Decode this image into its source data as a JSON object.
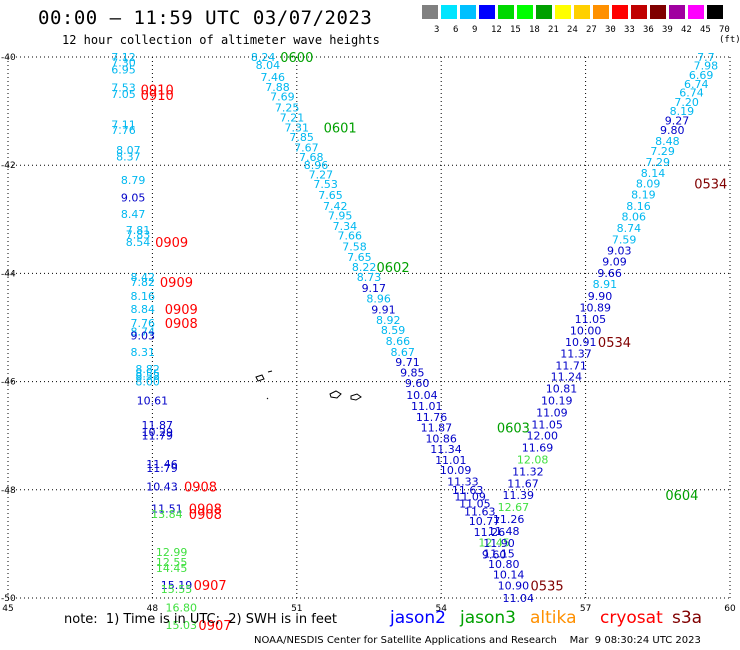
{
  "header": {
    "title": "00:00 – 11:59 UTC 03/07/2023",
    "subtitle": "12 hour collection of altimeter wave heights"
  },
  "color_scale": {
    "labels": [
      "3",
      "6",
      "9",
      "12",
      "15",
      "18",
      "21",
      "24",
      "27",
      "30",
      "33",
      "36",
      "39",
      "42",
      "45",
      "70 (ft)"
    ],
    "colors": [
      "#808080",
      "#00e5ff",
      "#00c0ff",
      "#0000ff",
      "#00d800",
      "#00ff00",
      "#00a000",
      "#ffff00",
      "#ffd000",
      "#ff9000",
      "#ff0000",
      "#c00000",
      "#800000",
      "#a000a0",
      "#ff00ff",
      "#000000"
    ]
  },
  "note": "note:  1) Time is in UTC;  2) SWH is in feet",
  "satellites": [
    {
      "name": "jason2",
      "color": "#0000ff"
    },
    {
      "name": "jason3",
      "color": "#00a000"
    },
    {
      "name": "altika",
      "color": "#ff9000"
    },
    {
      "name": "cryosat",
      "color": "#ff0000"
    },
    {
      "name": "s3a",
      "color": "#800000"
    }
  ],
  "footer": "NOAA/NESDIS Center for Satellite Applications and Research    Mar  9 08:30:24 UTC 2023",
  "chart_data": {
    "type": "scatter",
    "xlim": [
      45,
      60
    ],
    "ylim": [
      -50,
      -40
    ],
    "x_ticks": [
      "45",
      "48",
      "51",
      "54",
      "57",
      "60"
    ],
    "y_ticks": [
      "-40",
      "-42",
      "-44",
      "-46",
      "-48",
      "-50"
    ],
    "grid": true,
    "colors": {
      "lb": "#00b8f0",
      "bl": "#0000c8",
      "gr": "#00a000",
      "lg": "#40e040",
      "rd": "#ff0000",
      "dr": "#800000"
    },
    "wave_labels": [
      {
        "x": 47.4,
        "y": -40.0,
        "t": "7.12",
        "c": "lb"
      },
      {
        "x": 47.4,
        "y": -40.1,
        "t": "7.30",
        "c": "lb"
      },
      {
        "x": 47.4,
        "y": -40.23,
        "t": "6.95",
        "c": "lb"
      },
      {
        "x": 47.4,
        "y": -40.56,
        "t": "7.53",
        "c": "lb"
      },
      {
        "x": 47.4,
        "y": -40.68,
        "t": "7.05",
        "c": "lb"
      },
      {
        "x": 47.4,
        "y": -41.25,
        "t": "7.11",
        "c": "lb"
      },
      {
        "x": 47.4,
        "y": -41.35,
        "t": "7.76",
        "c": "lb"
      },
      {
        "x": 47.5,
        "y": -41.72,
        "t": "8.07",
        "c": "lb"
      },
      {
        "x": 47.5,
        "y": -41.84,
        "t": "8.37",
        "c": "lb"
      },
      {
        "x": 47.6,
        "y": -42.27,
        "t": "8.79",
        "c": "lb"
      },
      {
        "x": 47.6,
        "y": -42.6,
        "t": "9.05",
        "c": "bl"
      },
      {
        "x": 47.6,
        "y": -42.9,
        "t": "8.47",
        "c": "lb"
      },
      {
        "x": 47.7,
        "y": -43.2,
        "t": "7.81",
        "c": "lb"
      },
      {
        "x": 47.7,
        "y": -43.28,
        "t": "7.83",
        "c": "lb"
      },
      {
        "x": 47.7,
        "y": -43.42,
        "t": "8.54",
        "c": "lb"
      },
      {
        "x": 47.8,
        "y": -44.07,
        "t": "8.42",
        "c": "lb"
      },
      {
        "x": 47.8,
        "y": -44.16,
        "t": "7.82",
        "c": "lb"
      },
      {
        "x": 47.8,
        "y": -44.42,
        "t": "8.16",
        "c": "lb"
      },
      {
        "x": 47.8,
        "y": -44.66,
        "t": "8.84",
        "c": "lb"
      },
      {
        "x": 47.8,
        "y": -44.92,
        "t": "7.76",
        "c": "lb"
      },
      {
        "x": 47.8,
        "y": -45.07,
        "t": "8.74",
        "c": "lb"
      },
      {
        "x": 47.8,
        "y": -45.15,
        "t": "9.03",
        "c": "bl"
      },
      {
        "x": 47.8,
        "y": -45.45,
        "t": "8.31",
        "c": "lb"
      },
      {
        "x": 47.9,
        "y": -45.77,
        "t": "8.82",
        "c": "lb"
      },
      {
        "x": 47.9,
        "y": -45.85,
        "t": "8.55",
        "c": "lb"
      },
      {
        "x": 47.9,
        "y": -45.9,
        "t": "8.58",
        "c": "lb"
      },
      {
        "x": 47.9,
        "y": -46.0,
        "t": "8.00",
        "c": "lb"
      },
      {
        "x": 48.0,
        "y": -46.35,
        "t": "10.61",
        "c": "bl"
      },
      {
        "x": 48.1,
        "y": -46.8,
        "t": "11.87",
        "c": "bl"
      },
      {
        "x": 48.1,
        "y": -46.93,
        "t": "10.29",
        "c": "bl"
      },
      {
        "x": 48.1,
        "y": -47.0,
        "t": "11.79",
        "c": "bl"
      },
      {
        "x": 48.2,
        "y": -47.52,
        "t": "11.46",
        "c": "bl"
      },
      {
        "x": 48.2,
        "y": -47.6,
        "t": "11.79",
        "c": "bl"
      },
      {
        "x": 48.2,
        "y": -47.94,
        "t": "10.43",
        "c": "bl"
      },
      {
        "x": 48.3,
        "y": -48.35,
        "t": "11.51",
        "c": "bl"
      },
      {
        "x": 48.3,
        "y": -48.45,
        "t": "13.84",
        "c": "lg"
      },
      {
        "x": 48.4,
        "y": -49.15,
        "t": "12.99",
        "c": "lg"
      },
      {
        "x": 48.4,
        "y": -49.33,
        "t": "12.55",
        "c": "lg"
      },
      {
        "x": 48.4,
        "y": -49.45,
        "t": "14.45",
        "c": "lg"
      },
      {
        "x": 48.5,
        "y": -49.76,
        "t": "15.19",
        "c": "bl"
      },
      {
        "x": 48.5,
        "y": -49.83,
        "t": "15.55",
        "c": "lg"
      },
      {
        "x": 48.6,
        "y": -50.18,
        "t": "16.80",
        "c": "lg"
      },
      {
        "x": 48.6,
        "y": -50.5,
        "t": "15.03",
        "c": "lg"
      },
      {
        "x": 50.3,
        "y": -40.0,
        "t": "8.24",
        "c": "lb"
      },
      {
        "x": 50.4,
        "y": -40.15,
        "t": "8.04",
        "c": "lb"
      },
      {
        "x": 50.5,
        "y": -40.37,
        "t": "7.46",
        "c": "lb"
      },
      {
        "x": 50.6,
        "y": -40.55,
        "t": "7.88",
        "c": "lb"
      },
      {
        "x": 50.7,
        "y": -40.73,
        "t": "7.69",
        "c": "lb"
      },
      {
        "x": 50.8,
        "y": -40.93,
        "t": "7.25",
        "c": "lb"
      },
      {
        "x": 50.9,
        "y": -41.12,
        "t": "7.21",
        "c": "lb"
      },
      {
        "x": 51.0,
        "y": -41.3,
        "t": "7.31",
        "c": "lb"
      },
      {
        "x": 51.1,
        "y": -41.48,
        "t": "7.85",
        "c": "lb"
      },
      {
        "x": 51.2,
        "y": -41.67,
        "t": "7.67",
        "c": "lb"
      },
      {
        "x": 51.3,
        "y": -41.85,
        "t": "7.68",
        "c": "lb"
      },
      {
        "x": 51.4,
        "y": -42.0,
        "t": "8.96",
        "c": "lb"
      },
      {
        "x": 51.5,
        "y": -42.17,
        "t": "7.27",
        "c": "lb"
      },
      {
        "x": 51.6,
        "y": -42.35,
        "t": "7.53",
        "c": "lb"
      },
      {
        "x": 51.7,
        "y": -42.55,
        "t": "7.65",
        "c": "lb"
      },
      {
        "x": 51.8,
        "y": -42.75,
        "t": "7.42",
        "c": "lb"
      },
      {
        "x": 51.9,
        "y": -42.93,
        "t": "7.95",
        "c": "lb"
      },
      {
        "x": 52.0,
        "y": -43.12,
        "t": "7.34",
        "c": "lb"
      },
      {
        "x": 52.1,
        "y": -43.3,
        "t": "7.66",
        "c": "lb"
      },
      {
        "x": 52.2,
        "y": -43.5,
        "t": "7.58",
        "c": "lb"
      },
      {
        "x": 52.3,
        "y": -43.7,
        "t": "7.65",
        "c": "lb"
      },
      {
        "x": 52.4,
        "y": -43.88,
        "t": "8.22",
        "c": "lb"
      },
      {
        "x": 52.5,
        "y": -44.07,
        "t": "8.73",
        "c": "lb"
      },
      {
        "x": 52.6,
        "y": -44.27,
        "t": "9.17",
        "c": "bl"
      },
      {
        "x": 52.7,
        "y": -44.46,
        "t": "8.96",
        "c": "lb"
      },
      {
        "x": 52.8,
        "y": -44.67,
        "t": "9.91",
        "c": "bl"
      },
      {
        "x": 52.9,
        "y": -44.86,
        "t": "8.92",
        "c": "lb"
      },
      {
        "x": 53.0,
        "y": -45.05,
        "t": "8.59",
        "c": "lb"
      },
      {
        "x": 53.1,
        "y": -45.25,
        "t": "8.66",
        "c": "lb"
      },
      {
        "x": 53.2,
        "y": -45.45,
        "t": "8.67",
        "c": "lb"
      },
      {
        "x": 53.3,
        "y": -45.64,
        "t": "9.71",
        "c": "bl"
      },
      {
        "x": 53.4,
        "y": -45.83,
        "t": "9.85",
        "c": "bl"
      },
      {
        "x": 53.5,
        "y": -46.03,
        "t": "9.60",
        "c": "bl"
      },
      {
        "x": 53.6,
        "y": -46.25,
        "t": "10.04",
        "c": "bl"
      },
      {
        "x": 53.7,
        "y": -46.45,
        "t": "11.01",
        "c": "bl"
      },
      {
        "x": 53.8,
        "y": -46.65,
        "t": "11.76",
        "c": "bl"
      },
      {
        "x": 53.9,
        "y": -46.85,
        "t": "11.87",
        "c": "bl"
      },
      {
        "x": 54.0,
        "y": -47.05,
        "t": "10.86",
        "c": "bl"
      },
      {
        "x": 54.1,
        "y": -47.25,
        "t": "11.34",
        "c": "bl"
      },
      {
        "x": 54.2,
        "y": -47.45,
        "t": "11.01",
        "c": "bl"
      },
      {
        "x": 54.3,
        "y": -47.63,
        "t": "10.09",
        "c": "bl"
      },
      {
        "x": 54.45,
        "y": -47.85,
        "t": "11.33",
        "c": "bl"
      },
      {
        "x": 54.55,
        "y": -48.0,
        "t": "11.63",
        "c": "bl"
      },
      {
        "x": 54.6,
        "y": -48.12,
        "t": "11.09",
        "c": "bl"
      },
      {
        "x": 54.7,
        "y": -48.25,
        "t": "11.05",
        "c": "bl"
      },
      {
        "x": 54.8,
        "y": -48.4,
        "t": "11.63",
        "c": "bl"
      },
      {
        "x": 54.9,
        "y": -48.58,
        "t": "10.77",
        "c": "bl"
      },
      {
        "x": 55.0,
        "y": -48.78,
        "t": "11.26",
        "c": "bl"
      },
      {
        "x": 55.1,
        "y": -48.97,
        "t": "12.45",
        "c": "lg"
      },
      {
        "x": 55.2,
        "y": -49.18,
        "t": "11.15",
        "c": "bl"
      },
      {
        "x": 55.3,
        "y": -49.37,
        "t": "10.80",
        "c": "bl"
      },
      {
        "x": 55.4,
        "y": -49.57,
        "t": "10.14",
        "c": "bl"
      },
      {
        "x": 55.5,
        "y": -49.77,
        "t": "10.90",
        "c": "bl"
      },
      {
        "x": 55.6,
        "y": -50.0,
        "t": "11.04",
        "c": "bl"
      },
      {
        "x": 59.5,
        "y": -40.0,
        "t": "7.7",
        "c": "lb"
      },
      {
        "x": 59.5,
        "y": -40.16,
        "t": "7.98",
        "c": "lb"
      },
      {
        "x": 59.4,
        "y": -40.33,
        "t": "6.69",
        "c": "lb"
      },
      {
        "x": 59.3,
        "y": -40.5,
        "t": "6.74",
        "c": "lb"
      },
      {
        "x": 59.2,
        "y": -40.66,
        "t": "6.74",
        "c": "lb"
      },
      {
        "x": 59.1,
        "y": -40.83,
        "t": "7.20",
        "c": "lb"
      },
      {
        "x": 59.0,
        "y": -41.0,
        "t": "8.19",
        "c": "lb"
      },
      {
        "x": 58.9,
        "y": -41.17,
        "t": "9.27",
        "c": "bl"
      },
      {
        "x": 58.8,
        "y": -41.35,
        "t": "9.80",
        "c": "bl"
      },
      {
        "x": 58.7,
        "y": -41.55,
        "t": "8.48",
        "c": "lb"
      },
      {
        "x": 58.6,
        "y": -41.74,
        "t": "7.29",
        "c": "lb"
      },
      {
        "x": 58.5,
        "y": -41.94,
        "t": "7.29",
        "c": "lb"
      },
      {
        "x": 58.4,
        "y": -42.14,
        "t": "8.14",
        "c": "lb"
      },
      {
        "x": 58.3,
        "y": -42.34,
        "t": "8.09",
        "c": "lb"
      },
      {
        "x": 58.2,
        "y": -42.54,
        "t": "8.19",
        "c": "lb"
      },
      {
        "x": 58.1,
        "y": -42.75,
        "t": "8.16",
        "c": "lb"
      },
      {
        "x": 58.0,
        "y": -42.95,
        "t": "8.06",
        "c": "lb"
      },
      {
        "x": 57.9,
        "y": -43.16,
        "t": "8.74",
        "c": "lb"
      },
      {
        "x": 57.8,
        "y": -43.37,
        "t": "7.59",
        "c": "lb"
      },
      {
        "x": 57.7,
        "y": -43.58,
        "t": "9.03",
        "c": "bl"
      },
      {
        "x": 57.6,
        "y": -43.78,
        "t": "9.09",
        "c": "bl"
      },
      {
        "x": 57.5,
        "y": -43.99,
        "t": "9.66",
        "c": "bl"
      },
      {
        "x": 57.4,
        "y": -44.2,
        "t": "8.91",
        "c": "lb"
      },
      {
        "x": 57.3,
        "y": -44.42,
        "t": "9.90",
        "c": "bl"
      },
      {
        "x": 57.2,
        "y": -44.63,
        "t": "10.89",
        "c": "bl"
      },
      {
        "x": 57.1,
        "y": -44.84,
        "t": "11.05",
        "c": "bl"
      },
      {
        "x": 57.0,
        "y": -45.06,
        "t": "10.00",
        "c": "bl"
      },
      {
        "x": 56.9,
        "y": -45.27,
        "t": "10.91",
        "c": "bl"
      },
      {
        "x": 56.8,
        "y": -45.48,
        "t": "11.37",
        "c": "bl"
      },
      {
        "x": 56.7,
        "y": -45.7,
        "t": "11.71",
        "c": "bl"
      },
      {
        "x": 56.6,
        "y": -45.91,
        "t": "11.24",
        "c": "bl"
      },
      {
        "x": 56.5,
        "y": -46.13,
        "t": "10.81",
        "c": "bl"
      },
      {
        "x": 56.4,
        "y": -46.35,
        "t": "10.19",
        "c": "bl"
      },
      {
        "x": 56.3,
        "y": -46.57,
        "t": "11.09",
        "c": "bl"
      },
      {
        "x": 56.2,
        "y": -46.79,
        "t": "11.05",
        "c": "bl"
      },
      {
        "x": 56.1,
        "y": -47.0,
        "t": "12.00",
        "c": "bl"
      },
      {
        "x": 56.0,
        "y": -47.22,
        "t": "11.69",
        "c": "bl"
      },
      {
        "x": 55.9,
        "y": -47.44,
        "t": "12.08",
        "c": "lg"
      },
      {
        "x": 55.8,
        "y": -47.66,
        "t": "11.32",
        "c": "bl"
      },
      {
        "x": 55.7,
        "y": -47.88,
        "t": "11.67",
        "c": "bl"
      },
      {
        "x": 55.6,
        "y": -48.1,
        "t": "11.39",
        "c": "bl"
      },
      {
        "x": 55.5,
        "y": -48.32,
        "t": "12.67",
        "c": "lg"
      },
      {
        "x": 55.4,
        "y": -48.54,
        "t": "11.26",
        "c": "bl"
      },
      {
        "x": 55.3,
        "y": -48.76,
        "t": "11.48",
        "c": "bl"
      },
      {
        "x": 55.2,
        "y": -48.98,
        "t": "11.90",
        "c": "bl"
      },
      {
        "x": 55.1,
        "y": -49.2,
        "t": "9.60",
        "c": "bl"
      }
    ],
    "time_labels": [
      {
        "x": 48.1,
        "y": -40.6,
        "t": "0910",
        "c": "rd"
      },
      {
        "x": 48.1,
        "y": -40.7,
        "t": "0910",
        "c": "rd"
      },
      {
        "x": 48.4,
        "y": -43.42,
        "t": "0909",
        "c": "rd"
      },
      {
        "x": 48.5,
        "y": -44.16,
        "t": "0909",
        "c": "rd"
      },
      {
        "x": 48.6,
        "y": -44.66,
        "t": "0909",
        "c": "rd"
      },
      {
        "x": 48.6,
        "y": -44.92,
        "t": "0908",
        "c": "rd"
      },
      {
        "x": 49.0,
        "y": -47.94,
        "t": "0908",
        "c": "rd"
      },
      {
        "x": 49.1,
        "y": -48.35,
        "t": "0908",
        "c": "rd"
      },
      {
        "x": 49.1,
        "y": -48.45,
        "t": "0908",
        "c": "rd"
      },
      {
        "x": 49.2,
        "y": -49.76,
        "t": "0907",
        "c": "rd"
      },
      {
        "x": 49.3,
        "y": -50.5,
        "t": "0907",
        "c": "rd"
      },
      {
        "x": 51.0,
        "y": -40.0,
        "t": "0600",
        "c": "gr"
      },
      {
        "x": 51.9,
        "y": -41.3,
        "t": "0601",
        "c": "gr"
      },
      {
        "x": 53.0,
        "y": -43.88,
        "t": "0602",
        "c": "gr"
      },
      {
        "x": 55.5,
        "y": -46.85,
        "t": "0603",
        "c": "gr"
      },
      {
        "x": 59.6,
        "y": -42.34,
        "t": "0534",
        "c": "dr"
      },
      {
        "x": 57.6,
        "y": -45.27,
        "t": "0534",
        "c": "dr"
      },
      {
        "x": 56.2,
        "y": -49.77,
        "t": "0535",
        "c": "dr"
      },
      {
        "x": 59.0,
        "y": -48.1,
        "t": "0604",
        "c": "gr"
      }
    ]
  }
}
